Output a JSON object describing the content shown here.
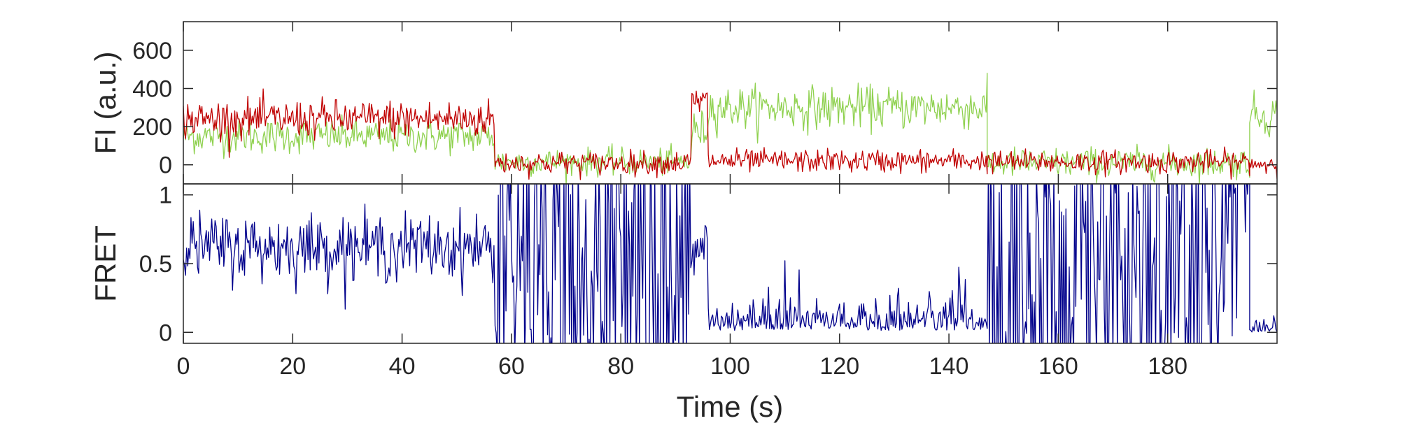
{
  "chart_data": [
    {
      "type": "line",
      "ylabel": "FI (a.u.)",
      "xlim": [
        0,
        200
      ],
      "ylim": [
        -100,
        750
      ],
      "yticks": [
        0,
        200,
        400,
        600
      ],
      "xticks": [
        0,
        20,
        40,
        60,
        80,
        100,
        120,
        140,
        160,
        180
      ],
      "grid": false,
      "series": [
        {
          "color": "#8fd14f",
          "segments": [
            {
              "x0": 0,
              "x1": 57,
              "mean": 150,
              "noise": 45
            },
            {
              "x0": 57,
              "x1": 93,
              "mean": 15,
              "noise": 35
            },
            {
              "x0": 93,
              "x1": 96,
              "mean": 180,
              "noise": 50
            },
            {
              "x0": 96,
              "x1": 147,
              "mean": 300,
              "noise": 55
            },
            {
              "x0": 147,
              "x1": 195,
              "mean": 10,
              "noise": 40
            },
            {
              "x0": 195,
              "x1": 200,
              "mean": 260,
              "noise": 55
            }
          ]
        },
        {
          "color": "#c00000",
          "segments": [
            {
              "x0": 0,
              "x1": 57,
              "mean": 240,
              "noise": 50
            },
            {
              "x0": 57,
              "x1": 93,
              "mean": 10,
              "noise": 30
            },
            {
              "x0": 93,
              "x1": 96,
              "mean": 330,
              "noise": 45
            },
            {
              "x0": 96,
              "x1": 147,
              "mean": 20,
              "noise": 30
            },
            {
              "x0": 147,
              "x1": 195,
              "mean": 15,
              "noise": 30
            },
            {
              "x0": 195,
              "x1": 200,
              "mean": 5,
              "noise": 25
            }
          ]
        }
      ]
    },
    {
      "type": "line",
      "xlabel": "Time (s)",
      "ylabel": "FRET",
      "xlim": [
        0,
        200
      ],
      "ylim": [
        -0.08,
        1.08
      ],
      "yticks": [
        0,
        0.5,
        1
      ],
      "ytick_labels": [
        "0",
        "0.5",
        "1"
      ],
      "xticks": [
        0,
        20,
        40,
        60,
        80,
        100,
        120,
        140,
        160,
        180
      ],
      "grid": false,
      "series": [
        {
          "color": "#00008b",
          "segments": [
            {
              "x0": 0,
              "x1": 57,
              "mean": 0.62,
              "noise": 0.12,
              "mode": "noisy"
            },
            {
              "x0": 57,
              "x1": 93,
              "mean": 0.5,
              "noise": 0.6,
              "mode": "wild"
            },
            {
              "x0": 93,
              "x1": 96,
              "mean": 0.65,
              "noise": 0.1,
              "mode": "noisy"
            },
            {
              "x0": 96,
              "x1": 147,
              "mean": 0.05,
              "noise": 0.09,
              "mode": "low"
            },
            {
              "x0": 147,
              "x1": 195,
              "mean": 0.5,
              "noise": 0.6,
              "mode": "wild"
            },
            {
              "x0": 195,
              "x1": 200,
              "mean": 0.02,
              "noise": 0.05,
              "mode": "low"
            }
          ]
        }
      ]
    }
  ]
}
